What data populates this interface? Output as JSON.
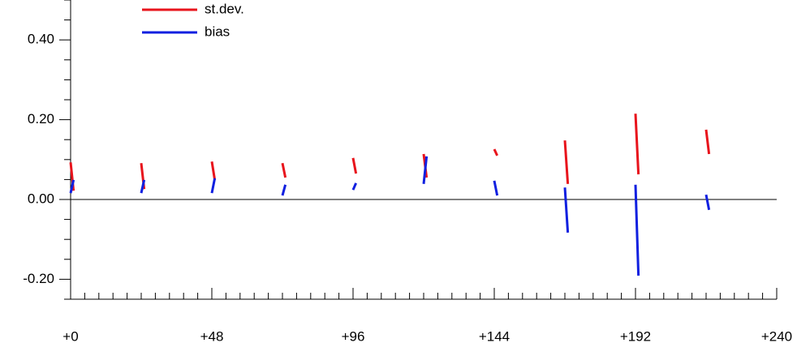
{
  "chart_data": {
    "type": "line",
    "x": [
      0,
      1,
      null,
      24,
      25,
      null,
      48,
      49,
      null,
      72,
      73,
      null,
      96,
      97,
      null,
      120,
      121,
      null,
      144,
      145,
      null,
      168,
      169,
      null,
      192,
      193,
      null,
      216,
      217
    ],
    "series": [
      {
        "name": "st.dev.",
        "color": "#e8141c",
        "values": [
          0.093,
          0.022,
          null,
          0.091,
          0.026,
          null,
          0.095,
          0.049,
          null,
          0.091,
          0.055,
          null,
          0.104,
          0.065,
          null,
          0.114,
          0.055,
          null,
          0.126,
          0.11,
          null,
          0.148,
          0.039,
          null,
          0.215,
          0.063,
          null,
          0.175,
          0.114
        ]
      },
      {
        "name": "bias",
        "color": "#1020e0",
        "values": [
          0.016,
          0.049,
          null,
          0.016,
          0.049,
          null,
          0.016,
          0.053,
          null,
          0.01,
          0.037,
          null,
          0.024,
          0.041,
          null,
          0.039,
          0.108,
          null,
          0.047,
          0.01,
          null,
          0.03,
          -0.083,
          null,
          0.037,
          -0.191,
          null,
          0.012,
          -0.026
        ]
      }
    ],
    "xlim": [
      0,
      240
    ],
    "xticks": [
      {
        "value": 0,
        "label": "+0"
      },
      {
        "value": 48,
        "label": "+48"
      },
      {
        "value": 96,
        "label": "+96"
      },
      {
        "value": 144,
        "label": "+144"
      },
      {
        "value": 192,
        "label": "+192"
      },
      {
        "value": 240,
        "label": "+240"
      }
    ],
    "xminorticks": [
      4.8,
      9.6,
      14.4,
      19.2,
      24,
      28.8,
      33.6,
      38.4,
      43.2,
      52.8,
      57.6,
      62.4,
      67.2,
      72,
      76.8,
      81.6,
      86.4,
      91.2,
      100.8,
      105.6,
      110.4,
      115.2,
      120,
      124.8,
      129.6,
      134.4,
      139.2,
      148.8,
      153.6,
      158.4,
      163.2,
      168,
      172.8,
      177.6,
      182.4,
      187.2,
      196.8,
      201.6,
      206.4,
      211.2,
      216,
      220.8,
      225.6,
      230.4,
      235.2
    ],
    "ylim": [
      -0.25,
      0.5
    ],
    "yticks": [
      {
        "value": -0.2,
        "label": "-0.20"
      },
      {
        "value": 0,
        "label": "0.00"
      },
      {
        "value": 0.2,
        "label": "0.20"
      },
      {
        "value": 0.4,
        "label": "0.40"
      }
    ],
    "yminorticks": [
      -0.25,
      -0.15,
      -0.1,
      -0.05,
      0.05,
      0.1,
      0.15,
      0.25,
      0.3,
      0.35,
      0.45,
      0.5
    ],
    "reference_line": 0,
    "legend": "top-left"
  }
}
